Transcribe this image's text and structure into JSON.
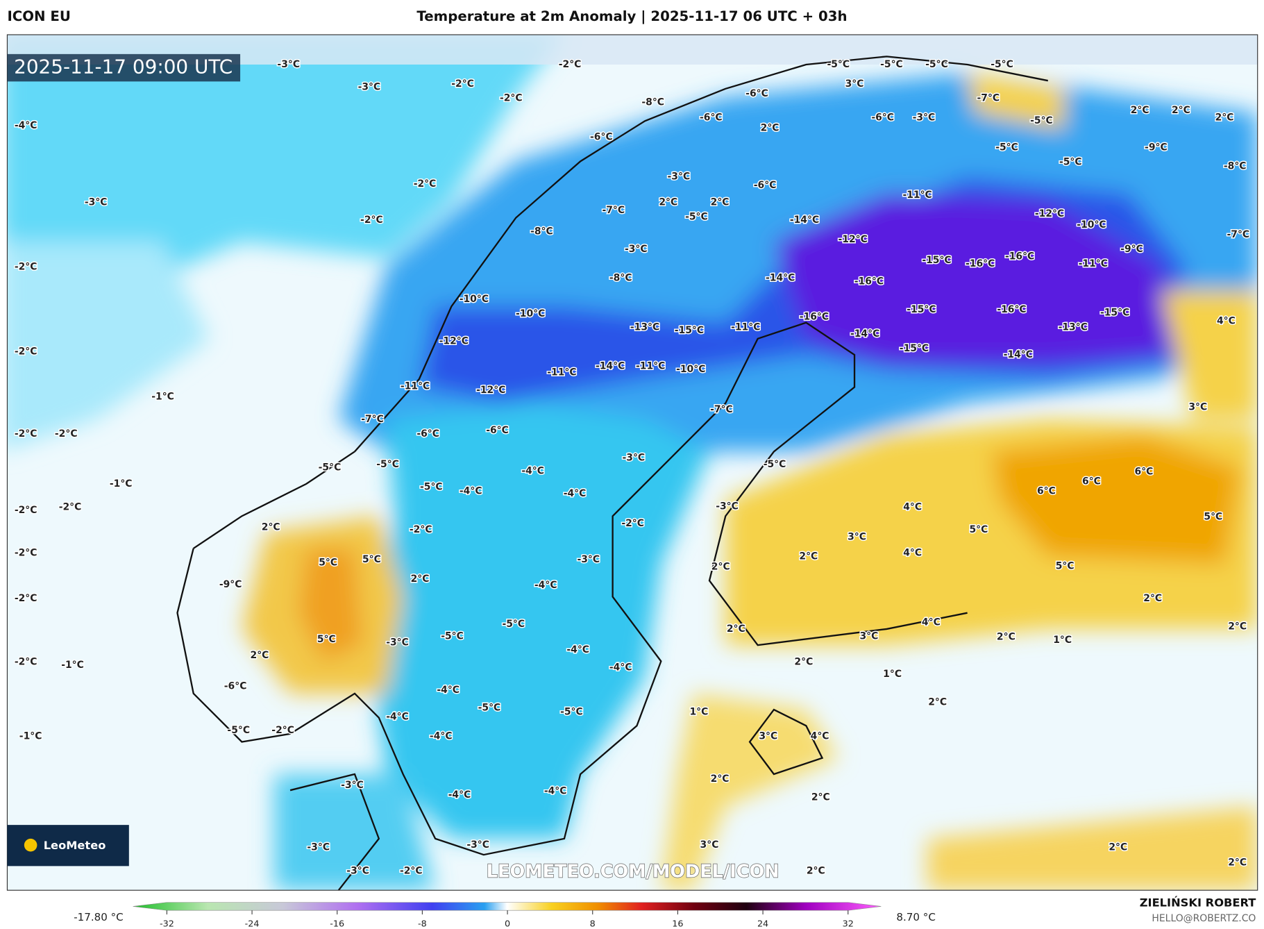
{
  "header": {
    "model": "ICON EU",
    "title": "Temperature at 2m Anomaly | 2025-11-17 06 UTC + 03h"
  },
  "map": {
    "timestamp": "2025-11-17 09:00 UTC",
    "watermark": "LEOMETEO.COM/MODEL/ICON",
    "logo": "LeoMeteo",
    "labels": [
      "-3°C",
      "-2°C",
      "-3°C",
      "-2°C",
      "-2°C",
      "-4°C",
      "-2°C",
      "-3°C",
      "-2°C",
      "-2°C",
      "-2°C",
      "-1°C",
      "-2°C",
      "-2°C",
      "-1°C",
      "-2°C",
      "-2°C",
      "-2°C",
      "-2°C",
      "-2°C",
      "-1°C",
      "-1°C",
      "-11°C",
      "-12°C",
      "-10°C",
      "-12°C",
      "-14°C",
      "-15°C",
      "-16°C",
      "-16°C",
      "-16°C",
      "-14°C",
      "-15°C",
      "-16°C",
      "-16°C",
      "-14°C",
      "-15°C",
      "-13°C",
      "-15°C",
      "-14°C",
      "-11°C",
      "-9°C",
      "-7°C",
      "-8°C",
      "-9°C",
      "-5°C",
      "2°C",
      "2°C",
      "2°C",
      "4°C",
      "3°C",
      "6°C",
      "6°C",
      "6°C",
      "5°C",
      "5°C",
      "4°C",
      "4°C",
      "3°C",
      "2°C",
      "5°C",
      "2°C",
      "2°C",
      "1°C",
      "2°C",
      "4°C",
      "3°C",
      "2°C",
      "1°C",
      "2°C",
      "1°C",
      "3°C",
      "4°C",
      "2°C",
      "2°C",
      "3°C",
      "2°C",
      "2°C",
      "2°C",
      "-10°C",
      "-12°C",
      "-10°C",
      "-13°C",
      "-15°C",
      "-11°C",
      "-11°C",
      "-14°C",
      "-11°C",
      "-10°C",
      "-11°C",
      "-12°C",
      "-7°C",
      "-6°C",
      "-6°C",
      "-4°C",
      "-3°C",
      "-5°C",
      "-4°C",
      "-4°C",
      "-2°C",
      "-2°C",
      "-3°C",
      "-4°C",
      "-5°C",
      "-5°C",
      "-4°C",
      "-4°C",
      "-4°C",
      "-5°C",
      "-5°C",
      "-4°C",
      "-4°C",
      "-3°C",
      "5°C",
      "5°C",
      "2°C",
      "5°C",
      "2°C",
      "-2°C",
      "-4°C",
      "-4°C",
      "-3°C",
      "-3°C",
      "-3°C",
      "-2°C",
      "-3°C",
      "-7°C",
      "-8°C",
      "-8°C",
      "-3°C",
      "2°C",
      "2°C",
      "-5°C",
      "2°C",
      "-6°C",
      "-6°C",
      "-3°C",
      "-5°C",
      "-5°C",
      "-5°C",
      "-5°C",
      "-5°C",
      "-7°C",
      "-5°C",
      "3°C",
      "-6°C",
      "-6°C",
      "-8°C",
      "-6°C",
      "-3°C",
      "-7°C",
      "-5°C",
      "-5°C",
      "2°C",
      "-9°C",
      "-6°C",
      "-5°C",
      "-3°C",
      "-5°C",
      "2°C",
      "2°C"
    ]
  },
  "colorbar": {
    "min_label": "-17.80 °C",
    "max_label": "8.70 °C",
    "ticks": [
      -32,
      -24,
      -16,
      -8,
      0,
      8,
      16,
      24,
      32
    ]
  },
  "footer": {
    "author": "ZIELIŃSKI ROBERT",
    "email": "HELLO@ROBERTZ.CO"
  }
}
